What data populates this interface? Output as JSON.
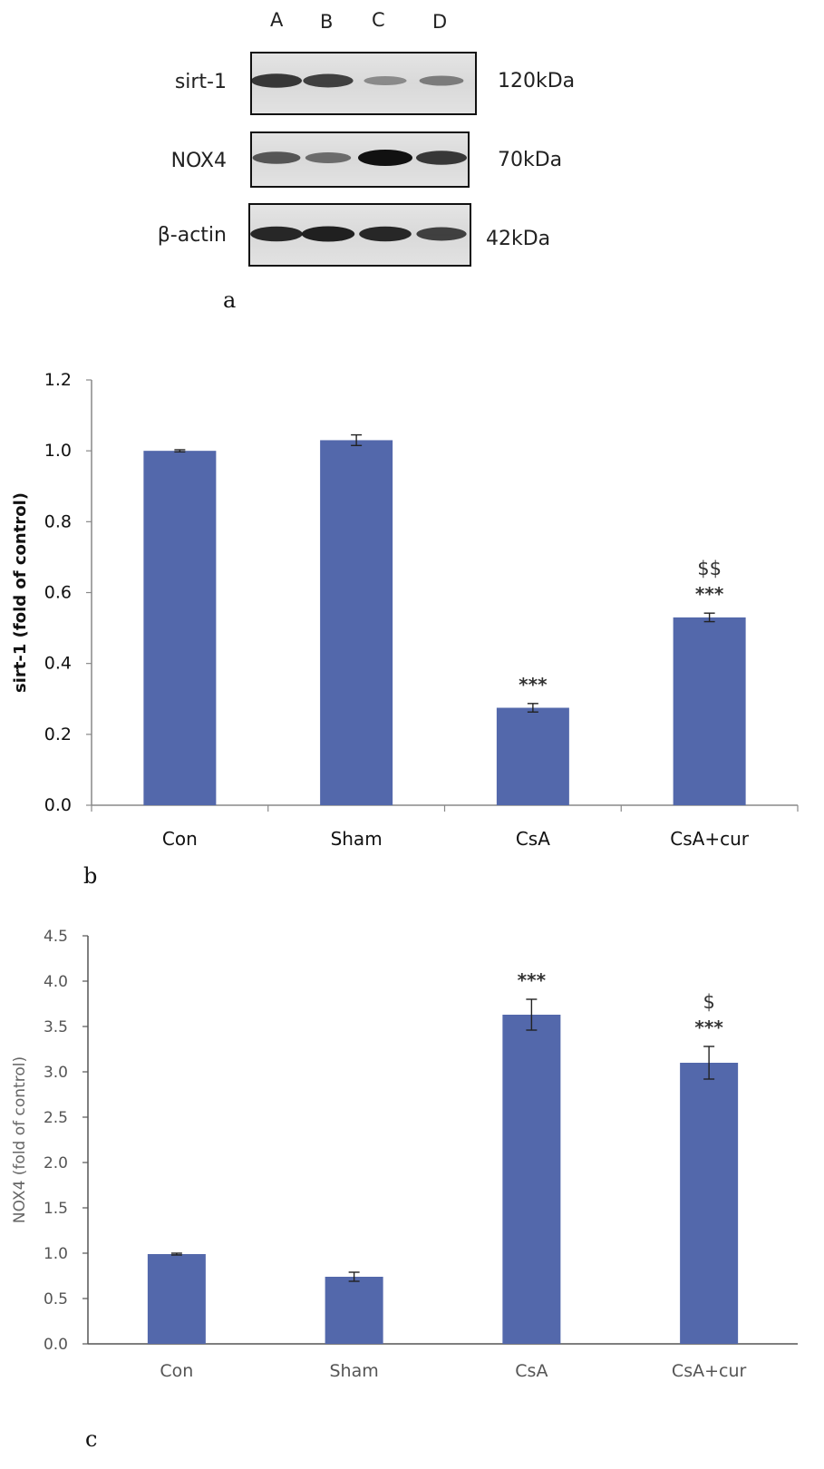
{
  "western_blot": {
    "lanes": [
      "A",
      "B",
      "C",
      "D"
    ],
    "rows": [
      {
        "protein": "sirt-1",
        "mw": "120kDa",
        "band_intensity": [
          0.75,
          0.7,
          0.2,
          0.3
        ]
      },
      {
        "protein": "NOX4",
        "mw": "70kDa",
        "band_intensity": [
          0.55,
          0.4,
          1.0,
          0.75
        ]
      },
      {
        "protein": "β-actin",
        "mw": "42kDa",
        "band_intensity": [
          0.85,
          0.9,
          0.85,
          0.7
        ]
      }
    ],
    "panel_label": "a"
  },
  "chart_data": [
    {
      "type": "bar",
      "panel_label": "b",
      "categories": [
        "Con",
        "Sham",
        "CsA",
        "CsA+cur"
      ],
      "values": [
        1.0,
        1.03,
        0.275,
        0.53
      ],
      "errors": [
        0.003,
        0.015,
        0.012,
        0.012
      ],
      "annotations": [
        "",
        "",
        "***",
        "***"
      ],
      "annotations_top": [
        "",
        "",
        "",
        "$$"
      ],
      "ylabel": "sirt-1 (fold of control)",
      "ylim": [
        0,
        1.2
      ],
      "yticks": [
        0.0,
        0.2,
        0.4,
        0.6,
        0.8,
        1.0,
        1.2
      ],
      "ytick_labels": [
        "0.0",
        "0.2",
        "0.4",
        "0.6",
        "0.8",
        "1.0",
        "1.2"
      ],
      "bar_color": "#5368ab"
    },
    {
      "type": "bar",
      "panel_label": "c",
      "categories": [
        "Con",
        "Sham",
        "CsA",
        "CsA+cur"
      ],
      "values": [
        0.99,
        0.74,
        3.63,
        3.1
      ],
      "errors": [
        0.01,
        0.05,
        0.17,
        0.18
      ],
      "annotations": [
        "",
        "",
        "***",
        "***"
      ],
      "annotations_top": [
        "",
        "",
        "",
        "$"
      ],
      "ylabel": "NOX4 (fold of control)",
      "ylim": [
        0,
        4.5
      ],
      "yticks": [
        0.0,
        0.5,
        1.0,
        1.5,
        2.0,
        2.5,
        3.0,
        3.5,
        4.0,
        4.5
      ],
      "ytick_labels": [
        "0.0",
        "0.5",
        "1.0",
        "1.5",
        "2.0",
        "2.5",
        "3.0",
        "3.5",
        "4.0",
        "4.5"
      ],
      "bar_color": "#5368ab"
    }
  ]
}
